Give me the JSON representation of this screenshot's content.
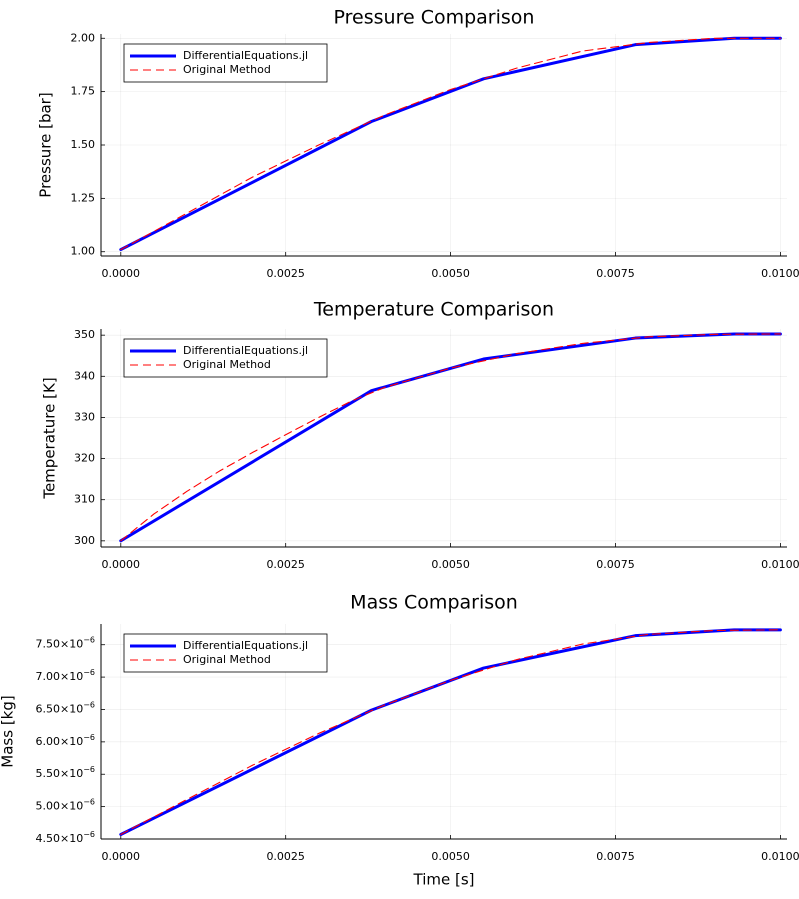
{
  "chart_data": [
    {
      "type": "line",
      "title": "Pressure Comparison",
      "xlabel": "",
      "ylabel": "Pressure [bar]",
      "xlim": [
        -0.0003,
        0.0101
      ],
      "ylim": [
        0.98,
        2.02
      ],
      "xticks": [
        0,
        0.0025,
        0.005,
        0.0075,
        0.01
      ],
      "xtick_labels": [
        "0.0000",
        "0.0025",
        "0.0050",
        "0.0075",
        "0.0100"
      ],
      "yticks": [
        1.0,
        1.25,
        1.5,
        1.75,
        2.0
      ],
      "ytick_labels": [
        "1.00",
        "1.25",
        "1.50",
        "1.75",
        "2.00"
      ],
      "ytick_format": "plain",
      "grid": true,
      "legend_position": "top-left",
      "series": [
        {
          "name": "DifferentialEquations.jl",
          "color": "#0000ff",
          "style": "solid",
          "x": [
            0,
            0.0038,
            0.0055,
            0.0078,
            0.0093,
            0.01
          ],
          "y": [
            1.01,
            1.61,
            1.81,
            1.97,
            2.0,
            2.0
          ]
        },
        {
          "name": "Original Method",
          "color": "#ff0000",
          "style": "dashed",
          "x": [
            0,
            0.001,
            0.002,
            0.003,
            0.004,
            0.005,
            0.006,
            0.007,
            0.008,
            0.009,
            0.01
          ],
          "y": [
            1.01,
            1.18,
            1.35,
            1.5,
            1.64,
            1.76,
            1.86,
            1.94,
            1.98,
            2.0,
            2.0
          ]
        }
      ]
    },
    {
      "type": "line",
      "title": "Temperature Comparison",
      "xlabel": "",
      "ylabel": "Temperature [K]",
      "xlim": [
        -0.0003,
        0.0101
      ],
      "ylim": [
        298.5,
        351.5
      ],
      "xticks": [
        0,
        0.0025,
        0.005,
        0.0075,
        0.01
      ],
      "xtick_labels": [
        "0.0000",
        "0.0025",
        "0.0050",
        "0.0075",
        "0.0100"
      ],
      "yticks": [
        300,
        310,
        320,
        330,
        340,
        350
      ],
      "ytick_labels": [
        "300",
        "310",
        "320",
        "330",
        "340",
        "350"
      ],
      "ytick_format": "plain",
      "grid": true,
      "legend_position": "top-left",
      "series": [
        {
          "name": "DifferentialEquations.jl",
          "color": "#0000ff",
          "style": "solid",
          "x": [
            0,
            0.0038,
            0.0055,
            0.0078,
            0.0093,
            0.01
          ],
          "y": [
            300,
            336.5,
            344.2,
            349.3,
            350.3,
            350.3
          ]
        },
        {
          "name": "Original Method",
          "color": "#ff0000",
          "style": "dashed",
          "x": [
            0,
            0.0005,
            0.001,
            0.0015,
            0.002,
            0.0025,
            0.003,
            0.0035,
            0.004,
            0.005,
            0.006,
            0.007,
            0.008,
            0.009,
            0.01
          ],
          "y": [
            300,
            306.5,
            312,
            317,
            321.5,
            325.8,
            330,
            334,
            337.3,
            342,
            345.5,
            348,
            349.6,
            350.2,
            350.3
          ]
        }
      ]
    },
    {
      "type": "line",
      "title": "Mass Comparison",
      "xlabel": "Time [s]",
      "ylabel": "Mass [kg]",
      "xlim": [
        -0.0003,
        0.0101
      ],
      "ylim": [
        4.5e-06,
        7.82e-06
      ],
      "xticks": [
        0,
        0.0025,
        0.005,
        0.0075,
        0.01
      ],
      "xtick_labels": [
        "0.0000",
        "0.0025",
        "0.0050",
        "0.0075",
        "0.0100"
      ],
      "yticks": [
        4.5e-06,
        5e-06,
        5.5e-06,
        6e-06,
        6.5e-06,
        7e-06,
        7.5e-06
      ],
      "ytick_labels": [
        "4.50",
        "5.00",
        "5.50",
        "6.00",
        "6.50",
        "7.00",
        "7.50"
      ],
      "ytick_format": "sci",
      "ytick_exponent": "−6",
      "ytick_mult": "×10",
      "grid": true,
      "legend_position": "top-left",
      "series": [
        {
          "name": "DifferentialEquations.jl",
          "color": "#0000ff",
          "style": "solid",
          "x": [
            0,
            0.0038,
            0.0055,
            0.0078,
            0.0093,
            0.01
          ],
          "y": [
            4.57e-06,
            6.49e-06,
            7.14e-06,
            7.64e-06,
            7.73e-06,
            7.73e-06
          ]
        },
        {
          "name": "Original Method",
          "color": "#ff0000",
          "style": "dashed",
          "x": [
            0,
            0.001,
            0.002,
            0.003,
            0.004,
            0.005,
            0.006,
            0.007,
            0.008,
            0.009,
            0.01
          ],
          "y": [
            4.57e-06,
            5.11e-06,
            5.64e-06,
            6.13e-06,
            6.57e-06,
            6.95e-06,
            7.27e-06,
            7.51e-06,
            7.66e-06,
            7.72e-06,
            7.73e-06
          ]
        }
      ]
    }
  ]
}
